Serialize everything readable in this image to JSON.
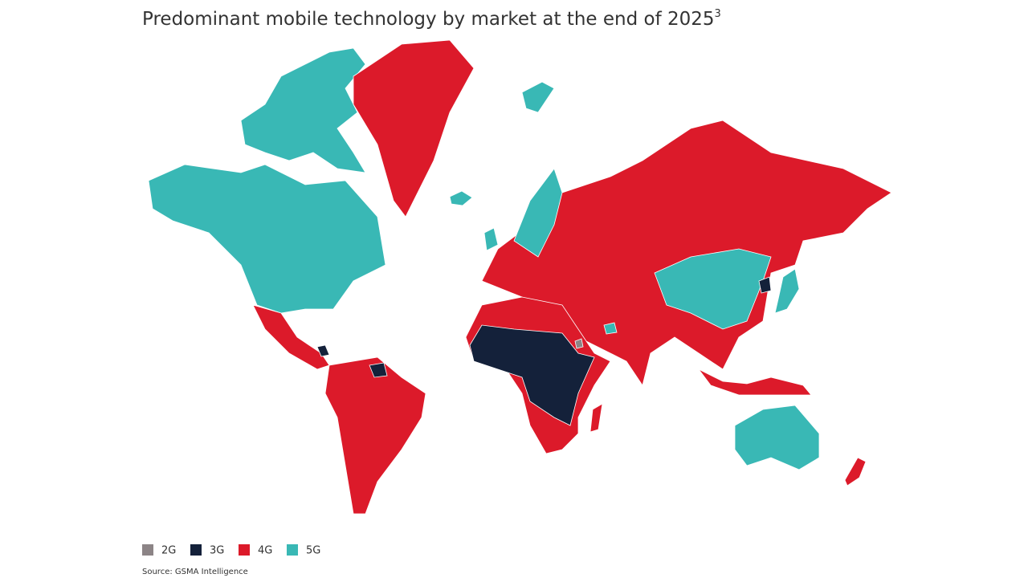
{
  "title": "Predominant mobile technology by market at the end of 2025",
  "title_superscript": "3",
  "legend": [
    {
      "label": "2G",
      "color": "#8c8486"
    },
    {
      "label": "3G",
      "color": "#14213a"
    },
    {
      "label": "4G",
      "color": "#dc1a2a"
    },
    {
      "label": "5G",
      "color": "#39b8b5"
    }
  ],
  "source": "Source: GSMA Intelligence"
}
